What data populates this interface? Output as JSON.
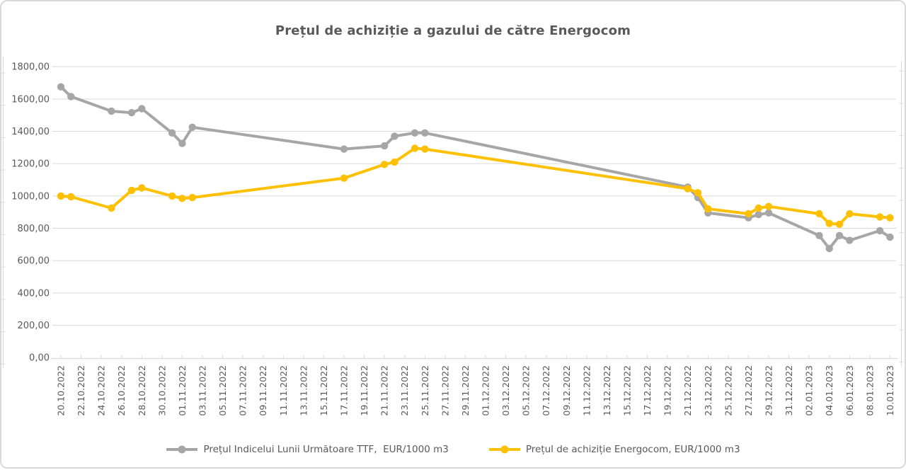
{
  "title": "Prețul de achiziție a gazului de către Energocom",
  "chart_data": {
    "type": "line",
    "title": "Prețul de achiziție a gazului de către Energocom",
    "ylabel": "",
    "xlabel": "",
    "ylim": [
      0,
      1800
    ],
    "grid": true,
    "legend_position": "bottom",
    "y_tick_values": [
      0,
      200,
      400,
      600,
      800,
      1000,
      1200,
      1400,
      1600,
      1800
    ],
    "y_tick_labels": [
      "0,00",
      "200,00",
      "400,00",
      "600,00",
      "800,00",
      "1000,00",
      "1200,00",
      "1400,00",
      "1600,00",
      "1800,00"
    ],
    "x_tick_labels": [
      "20.10.2022",
      "22.10.2022",
      "24.10.2022",
      "26.10.2022",
      "28.10.2022",
      "30.10.2022",
      "01.11.2022",
      "03.11.2022",
      "05.11.2022",
      "07.11.2022",
      "09.11.2022",
      "11.11.2022",
      "13.11.2022",
      "15.11.2022",
      "17.11.2022",
      "19.11.2022",
      "21.11.2022",
      "23.11.2022",
      "25.11.2022",
      "27.11.2022",
      "29.11.2022",
      "01.12.2022",
      "03.12.2022",
      "05.12.2022",
      "07.12.2022",
      "09.12.2022",
      "11.12.2022",
      "13.12.2022",
      "15.12.2022",
      "17.12.2022",
      "19.12.2022",
      "21.12.2022",
      "23.12.2022",
      "25.12.2022",
      "27.12.2022",
      "29.12.2022",
      "31.12.2022",
      "02.01.2023",
      "04.01.2023",
      "06.01.2023",
      "08.01.2023",
      "10.01.2023"
    ],
    "x_axis_start_date": "20.10.2022",
    "x_axis_end_date": "10.01.2023",
    "series": [
      {
        "name": "Prețul Indicelui Lunii Următoare TTF,  EUR/1000 m3",
        "color": "#a6a6a6",
        "unit": "EUR/1000 m3",
        "points": [
          {
            "date": "20.10.2022",
            "day": 0,
            "value": 1675
          },
          {
            "date": "21.10.2022",
            "day": 1,
            "value": 1615
          },
          {
            "date": "25.10.2022",
            "day": 5,
            "value": 1525
          },
          {
            "date": "27.10.2022",
            "day": 7,
            "value": 1515
          },
          {
            "date": "28.10.2022",
            "day": 8,
            "value": 1540
          },
          {
            "date": "31.10.2022",
            "day": 11,
            "value": 1390
          },
          {
            "date": "01.11.2022",
            "day": 12,
            "value": 1325
          },
          {
            "date": "02.11.2022",
            "day": 13,
            "value": 1425
          },
          {
            "date": "17.11.2022",
            "day": 28,
            "value": 1290
          },
          {
            "date": "21.11.2022",
            "day": 32,
            "value": 1310
          },
          {
            "date": "22.11.2022",
            "day": 33,
            "value": 1370
          },
          {
            "date": "24.11.2022",
            "day": 35,
            "value": 1390
          },
          {
            "date": "25.11.2022",
            "day": 36,
            "value": 1390
          },
          {
            "date": "21.12.2022",
            "day": 62,
            "value": 1055
          },
          {
            "date": "22.12.2022",
            "day": 63,
            "value": 990
          },
          {
            "date": "23.12.2022",
            "day": 64,
            "value": 895
          },
          {
            "date": "27.12.2022",
            "day": 68,
            "value": 865
          },
          {
            "date": "28.12.2022",
            "day": 69,
            "value": 885
          },
          {
            "date": "29.12.2022",
            "day": 70,
            "value": 895
          },
          {
            "date": "03.01.2023",
            "day": 75,
            "value": 755
          },
          {
            "date": "04.01.2023",
            "day": 76,
            "value": 675
          },
          {
            "date": "05.01.2023",
            "day": 77,
            "value": 755
          },
          {
            "date": "06.01.2023",
            "day": 78,
            "value": 725
          },
          {
            "date": "09.01.2023",
            "day": 81,
            "value": 785
          },
          {
            "date": "10.01.2023",
            "day": 82,
            "value": 745
          }
        ]
      },
      {
        "name": "Prețul de achiziție Energocom, EUR/1000 m3",
        "color": "#ffc000",
        "unit": "EUR/1000 m3",
        "points": [
          {
            "date": "20.10.2022",
            "day": 0,
            "value": 1000
          },
          {
            "date": "21.10.2022",
            "day": 1,
            "value": 995
          },
          {
            "date": "25.10.2022",
            "day": 5,
            "value": 925
          },
          {
            "date": "27.10.2022",
            "day": 7,
            "value": 1035
          },
          {
            "date": "28.10.2022",
            "day": 8,
            "value": 1050
          },
          {
            "date": "31.10.2022",
            "day": 11,
            "value": 1000
          },
          {
            "date": "01.11.2022",
            "day": 12,
            "value": 985
          },
          {
            "date": "02.11.2022",
            "day": 13,
            "value": 990
          },
          {
            "date": "17.11.2022",
            "day": 28,
            "value": 1110
          },
          {
            "date": "21.11.2022",
            "day": 32,
            "value": 1195
          },
          {
            "date": "22.11.2022",
            "day": 33,
            "value": 1210
          },
          {
            "date": "24.11.2022",
            "day": 35,
            "value": 1295
          },
          {
            "date": "25.11.2022",
            "day": 36,
            "value": 1290
          },
          {
            "date": "21.12.2022",
            "day": 62,
            "value": 1045
          },
          {
            "date": "22.12.2022",
            "day": 63,
            "value": 1020
          },
          {
            "date": "23.12.2022",
            "day": 64,
            "value": 920
          },
          {
            "date": "27.12.2022",
            "day": 68,
            "value": 890
          },
          {
            "date": "28.12.2022",
            "day": 69,
            "value": 925
          },
          {
            "date": "29.12.2022",
            "day": 70,
            "value": 935
          },
          {
            "date": "03.01.2023",
            "day": 75,
            "value": 890
          },
          {
            "date": "04.01.2023",
            "day": 76,
            "value": 830
          },
          {
            "date": "05.01.2023",
            "day": 77,
            "value": 825
          },
          {
            "date": "06.01.2023",
            "day": 78,
            "value": 890
          },
          {
            "date": "09.01.2023",
            "day": 81,
            "value": 870
          },
          {
            "date": "10.01.2023",
            "day": 82,
            "value": 865
          }
        ]
      }
    ]
  },
  "colors": {
    "ttf_series": "#a6a6a6",
    "energocom_series": "#ffc000",
    "gridline": "#d9d9d9",
    "axis_text": "#595959",
    "title_text": "#595959",
    "frame_border": "#d9d9d9"
  }
}
